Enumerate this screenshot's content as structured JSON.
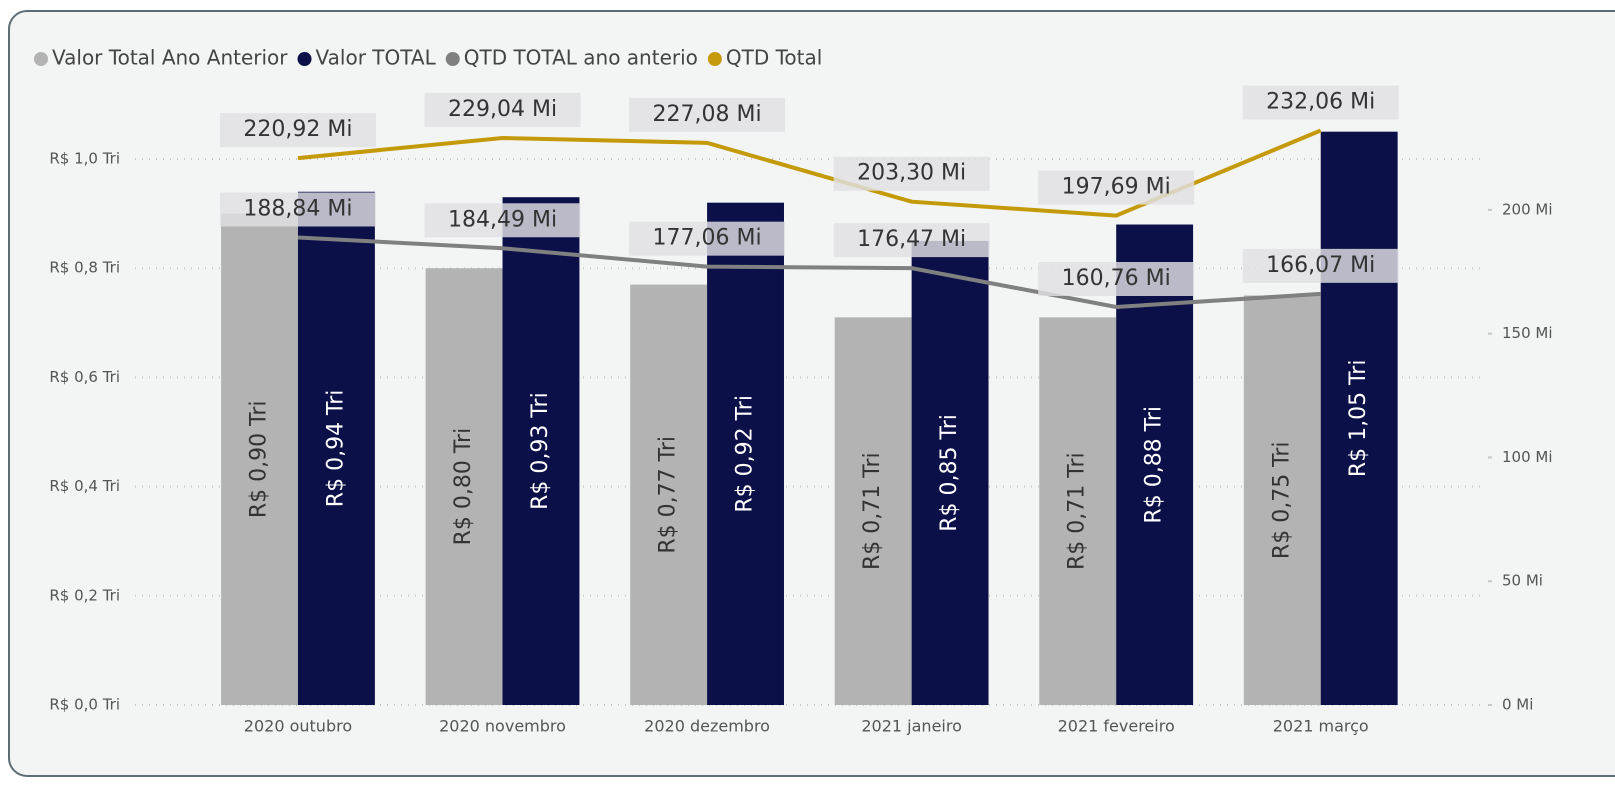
{
  "chart_data": {
    "type": "bar-line",
    "legend": "top-left",
    "grid": true,
    "categories": [
      "2020 outubro",
      "2020 novembro",
      "2020 dezembro",
      "2021 janeiro",
      "2021 fevereiro",
      "2021 março"
    ],
    "series": [
      {
        "name": "Valor Total Ano Anterior",
        "type": "bar",
        "color": "#b3b3b3",
        "values": [
          0.9,
          0.8,
          0.77,
          0.71,
          0.71,
          0.75
        ],
        "value_labels": [
          "R$ 0,90 Tri",
          "R$ 0,80 Tri",
          "R$ 0,77 Tri",
          "R$ 0,71 Tri",
          "R$ 0,71 Tri",
          "R$ 0,75 Tri"
        ]
      },
      {
        "name": "Valor TOTAL",
        "type": "bar",
        "color": "#0b1048",
        "values": [
          0.94,
          0.93,
          0.92,
          0.85,
          0.88,
          1.05
        ],
        "value_labels": [
          "R$ 0,94 Tri",
          "R$ 0,93 Tri",
          "R$ 0,92 Tri",
          "R$ 0,85 Tri",
          "R$ 0,88 Tri",
          "R$ 1,05 Tri"
        ]
      },
      {
        "name": "QTD TOTAL ano anterio",
        "type": "line",
        "axis": "y2",
        "color": "#808080",
        "values": [
          188.84,
          184.49,
          177.06,
          176.47,
          160.76,
          166.07
        ],
        "value_labels": [
          "188,84 Mi",
          "184,49 Mi",
          "177,06 Mi",
          "176,47 Mi",
          "160,76 Mi",
          "166,07 Mi"
        ]
      },
      {
        "name": "QTD Total",
        "type": "line",
        "axis": "y2",
        "color": "#c49a0a",
        "values": [
          220.92,
          229.04,
          227.08,
          203.3,
          197.69,
          232.06
        ],
        "value_labels": [
          "220,92 Mi",
          "229,04 Mi",
          "227,08 Mi",
          "203,30 Mi",
          "197,69 Mi",
          "232,06 Mi"
        ]
      }
    ],
    "ylim": [
      0,
      1.1
    ],
    "yticks": [
      {
        "value": 0,
        "label": "R$ 0,0 Tri"
      },
      {
        "value": 0.2,
        "label": "R$ 0,2 Tri"
      },
      {
        "value": 0.4,
        "label": "R$ 0,4 Tri"
      },
      {
        "value": 0.6,
        "label": "R$ 0,6 Tri"
      },
      {
        "value": 0.8,
        "label": "R$ 0,8 Tri"
      },
      {
        "value": 1.0,
        "label": "R$ 1,0 Tri"
      }
    ],
    "y2lim": [
      0,
      242.6
    ],
    "y2ticks": [
      {
        "value": 0,
        "label": "0 Mi"
      },
      {
        "value": 50,
        "label": "50 Mi"
      },
      {
        "value": 100,
        "label": "100 Mi"
      },
      {
        "value": 150,
        "label": "150 Mi"
      },
      {
        "value": 200,
        "label": "200 Mi"
      }
    ]
  }
}
